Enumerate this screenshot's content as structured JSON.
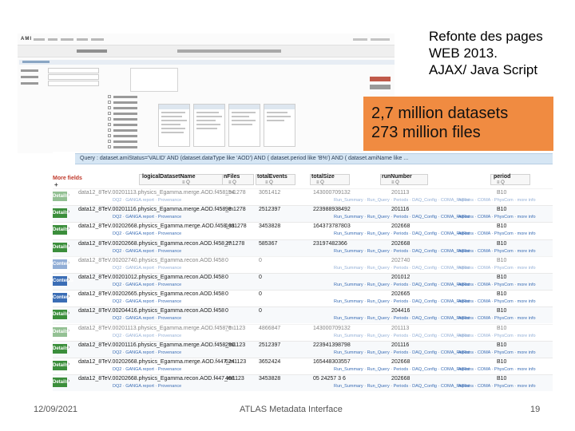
{
  "slide": {
    "title_lines": [
      "Refonte des pages",
      "WEB 2013.",
      "AJAX/ Java Script"
    ],
    "callout_lines": [
      "2,7 million datasets",
      "273 million files"
    ],
    "footer_date": "12/09/2021",
    "footer_center": "ATLAS Metadata Interface",
    "page_number": "19"
  },
  "top_screenshot": {
    "logo": "AMI"
  },
  "table": {
    "query": "Query : dataset.amiStatus='VALID' AND (dataset.dataType like 'AOD') AND ( dataset.period like 'B%') AND ( dataset.amiName like ...",
    "add_label": "+",
    "columns": [
      {
        "label": "logicalDatasetName",
        "sub": "≡ Q"
      },
      {
        "label": "nFiles",
        "sub": "≡ Q"
      },
      {
        "label": "totalEvents",
        "sub": "≡ Q"
      },
      {
        "label": "totalSize",
        "sub": "≡ Q"
      },
      {
        "label": "runNumber",
        "sub": "≡ Q"
      },
      {
        "label": "period",
        "sub": "≡ Q"
      }
    ],
    "first_col_header": "More fields",
    "rows": [
      {
        "btn": "Details",
        "name": "data12_8TeV.00201113.physics_Egamma.merge.AOD.f458_m1278",
        "nfiles": "154",
        "events": "3051412",
        "size": "143000709132",
        "run": "201113",
        "period": "B10",
        "dim": true
      },
      {
        "btn": "Details",
        "name": "data12_8TeV.00201116.physics_Egamma.merge.AOD.f458_m1278",
        "nfiles": "98",
        "events": "2512397",
        "size": "223988938492",
        "run": "201116",
        "period": "B10",
        "dim": false
      },
      {
        "btn": "Details",
        "name": "data12_8TeV.00202668.physics_Egamma.merge.AOD.f458_m1278",
        "nfiles": "163",
        "events": "3453828",
        "size": "164373787803",
        "run": "202668",
        "period": "B10",
        "dim": false
      },
      {
        "btn": "Details",
        "name": "data12_8TeV.00202668.physics_Egamma.recon.AOD.f458_m1278",
        "nfiles": "27",
        "events": "585367",
        "size": "23197482366",
        "run": "202668",
        "period": "B10",
        "dim": false
      },
      {
        "btn": "Contents",
        "name": "data12_8TeV.00202740.physics_Egamma.recon.AOD.f458",
        "nfiles": "0",
        "events": "0",
        "size": "",
        "run": "202740",
        "period": "B10",
        "dim": true
      },
      {
        "btn": "Contents",
        "name": "data12_8TeV.00201012.physics_Egamma.recon.AOD.f458",
        "nfiles": "0",
        "events": "0",
        "size": "",
        "run": "201012",
        "period": "B10",
        "dim": false
      },
      {
        "btn": "Contents",
        "name": "data12_8TeV.00202665.physics_Egamma.recon.AOD.f458",
        "nfiles": "0",
        "events": "0",
        "size": "",
        "run": "202665",
        "period": "B10",
        "dim": false
      },
      {
        "btn": "Details",
        "name": "data12_8TeV.00204416.physics_Egamma.recon.AOD.f458",
        "nfiles": "0",
        "events": "0",
        "size": "",
        "run": "204416",
        "period": "B10",
        "dim": false
      },
      {
        "btn": "Details",
        "name": "data12_8TeV.00201113.physics_Egamma.merge.AOD.f458_m1123",
        "nfiles": "76",
        "events": "4866847",
        "size": "143000709132",
        "run": "201113",
        "period": "B10",
        "dim": true
      },
      {
        "btn": "Details",
        "name": "data12_8TeV.00201116.physics_Egamma.merge.AOD.f458_m1123",
        "nfiles": "290",
        "events": "2512397",
        "size": "223941398798",
        "run": "201116",
        "period": "B10",
        "dim": false
      },
      {
        "btn": "Details",
        "name": "data12_8TeV.00202668.physics_Egamma.merge.AOD.f447_m1123",
        "nfiles": "624",
        "events": "3652424",
        "size": "165448303557",
        "run": "202668",
        "period": "B10",
        "dim": false
      },
      {
        "btn": "Details",
        "name": "data12_8TeV.00202668.physics_Egamma.recon.AOD.f447_m1123",
        "nfiles": "468",
        "events": "3453828",
        "size": "05 24257 3 6",
        "run": "202668",
        "period": "B10",
        "dim": false
      }
    ],
    "name_links": "DQ2 · GANGA.report · Provenance",
    "run_links": "Run_Summary · Run_Query · Periods · DAQ_Config · COMA_Report",
    "period_links": "AllRuns · COMA · PhysCom · more info"
  }
}
